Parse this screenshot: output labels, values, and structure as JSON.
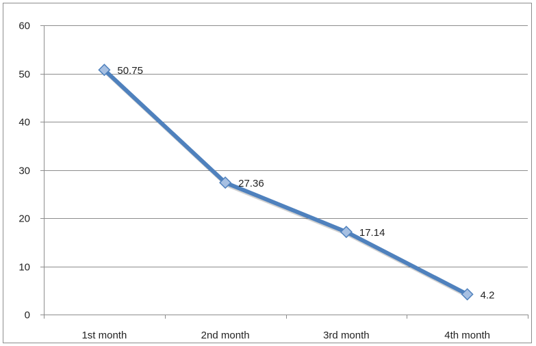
{
  "chart_data": {
    "type": "line",
    "categories": [
      "1st month",
      "2nd month",
      "3rd month",
      "4th month"
    ],
    "series": [
      {
        "values": [
          50.75,
          27.36,
          17.14,
          4.2
        ],
        "data_labels": [
          "50.75",
          "27.36",
          "17.14",
          "4.2"
        ],
        "color": "#4f81bd",
        "marker": "diamond"
      }
    ],
    "ylim": [
      0,
      60
    ],
    "yticks": [
      0,
      10,
      20,
      30,
      40,
      50,
      60
    ],
    "ytick_labels": [
      "0",
      "10",
      "20",
      "30",
      "40",
      "50",
      "60"
    ],
    "grid": true,
    "legend": "none"
  },
  "colors": {
    "line": "#4f81bd",
    "marker_fill": "#a7c0e2",
    "marker_stroke": "#4f81bd",
    "grid": "#8c8c8c",
    "axis": "#8c8c8c",
    "text": "#222222"
  }
}
